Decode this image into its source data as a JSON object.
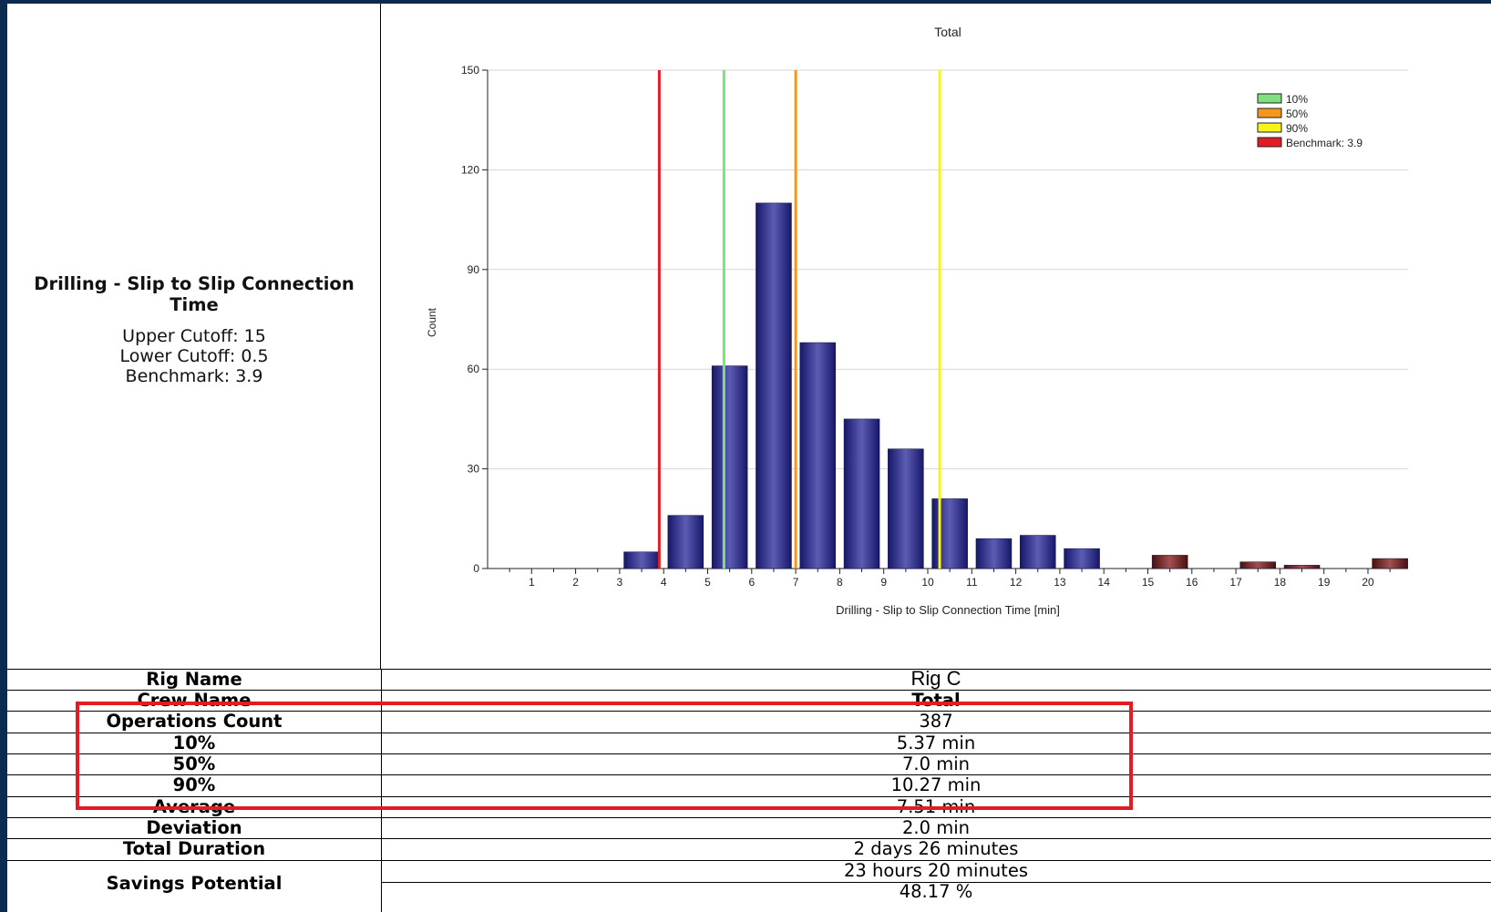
{
  "metric": {
    "title": "Drilling - Slip to Slip Connection Time",
    "upper_cutoff": "Upper Cutoff: 15",
    "lower_cutoff": "Lower Cutoff: 0.5",
    "benchmark": "Benchmark: 3.9"
  },
  "chart_data": {
    "type": "bar",
    "title": "Total",
    "xlabel": "Drilling - Slip to Slip Connection Time [min]",
    "ylabel": "Count",
    "ylim": [
      0,
      150
    ],
    "yticks": [
      0,
      30,
      60,
      90,
      120,
      150
    ],
    "xlim": [
      0,
      21
    ],
    "xticks": [
      1,
      2,
      3,
      4,
      5,
      6,
      7,
      8,
      9,
      10,
      11,
      12,
      13,
      14,
      15,
      16,
      17,
      18,
      19,
      20
    ],
    "grid": true,
    "legend_position": "top-right",
    "bars": [
      {
        "x": 3.5,
        "value": 5,
        "color": "#2a2a7e"
      },
      {
        "x": 4.5,
        "value": 16,
        "color": "#2a2a7e"
      },
      {
        "x": 5.5,
        "value": 61,
        "color": "#2a2a7e"
      },
      {
        "x": 6.5,
        "value": 110,
        "color": "#2a2a7e"
      },
      {
        "x": 7.5,
        "value": 68,
        "color": "#2a2a7e"
      },
      {
        "x": 8.5,
        "value": 45,
        "color": "#2a2a7e"
      },
      {
        "x": 9.5,
        "value": 36,
        "color": "#2a2a7e"
      },
      {
        "x": 10.5,
        "value": 21,
        "color": "#2a2a7e"
      },
      {
        "x": 11.5,
        "value": 9,
        "color": "#2a2a7e"
      },
      {
        "x": 12.5,
        "value": 10,
        "color": "#2a2a7e"
      },
      {
        "x": 13.5,
        "value": 6,
        "color": "#2a2a7e"
      },
      {
        "x": 15.5,
        "value": 4,
        "color": "#6b1d1d"
      },
      {
        "x": 17.5,
        "value": 2,
        "color": "#6b1d1d"
      },
      {
        "x": 18.5,
        "value": 1,
        "color": "#6b1d1d"
      },
      {
        "x": 20.5,
        "value": 3,
        "color": "#6b1d1d"
      }
    ],
    "reference_lines": [
      {
        "name": "10%",
        "x": 5.37,
        "color": "#7fe07f"
      },
      {
        "name": "50%",
        "x": 7.0,
        "color": "#f5961e"
      },
      {
        "name": "90%",
        "x": 10.27,
        "color": "#f5f51a"
      },
      {
        "name": "Benchmark: 3.9",
        "x": 3.9,
        "color": "#e31c23"
      }
    ]
  },
  "stats": [
    {
      "label": "Rig Name",
      "value": "Rig C"
    },
    {
      "label": "Crew Name",
      "value": "Total"
    },
    {
      "label": "Operations Count",
      "value": "387"
    },
    {
      "label": "10%",
      "value": "5.37 min"
    },
    {
      "label": "50%",
      "value": "7.0 min"
    },
    {
      "label": "90%",
      "value": "10.27 min"
    },
    {
      "label": "Average",
      "value": "7.51 min"
    },
    {
      "label": "Deviation",
      "value": "2.0 min"
    },
    {
      "label": "Total Duration",
      "value": "2 days 26 minutes"
    }
  ],
  "savings": {
    "label": "Savings Potential",
    "time": "23 hours 20 minutes",
    "percent": "48.17 %"
  },
  "highlight_color": "#e31c23"
}
